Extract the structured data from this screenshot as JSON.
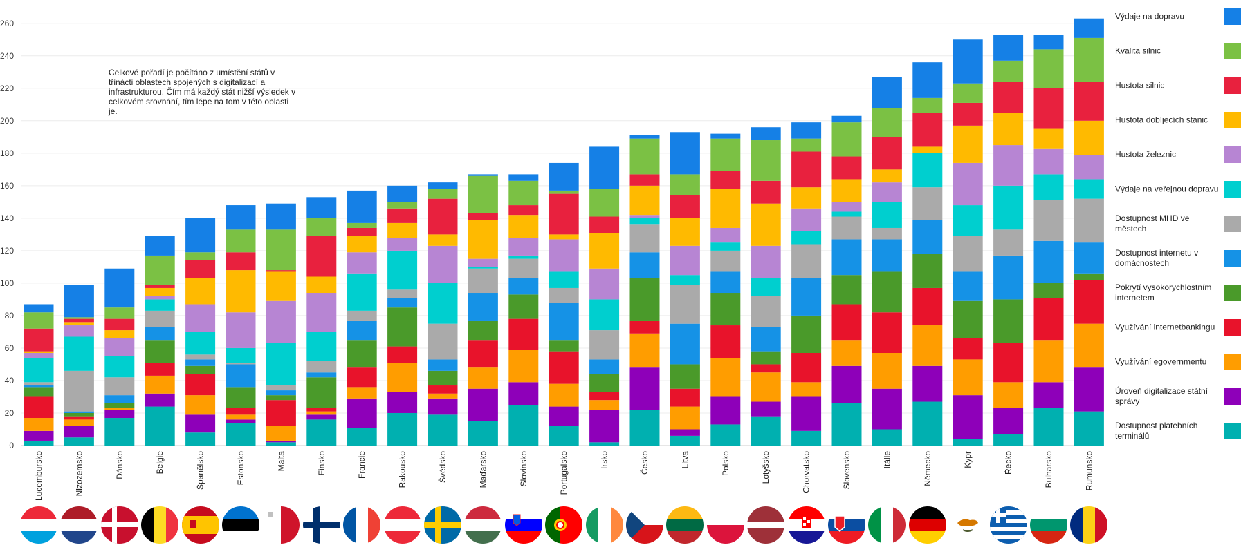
{
  "note": "Celkové pořadí je počítáno z umístění států v třinácti oblastech spojených s digitalizací a infrastrukturou. Čím má každý stát nižší výsledek v celkovém srovnání, tím lépe na tom v této oblasti je.",
  "chart_data": {
    "type": "bar",
    "stacked": true,
    "ylim": [
      0,
      265
    ],
    "yticks": [
      0,
      20,
      40,
      60,
      80,
      100,
      120,
      140,
      160,
      180,
      200,
      220,
      240,
      260
    ],
    "grid": true,
    "legend_position": "right",
    "categories": [
      "Lucembursko",
      "Nizozemsko",
      "Dánsko",
      "Belgie",
      "Španělsko",
      "Estonsko",
      "Malta",
      "Finsko",
      "Francie",
      "Rakousko",
      "Švédsko",
      "Maďarsko",
      "Slovinsko",
      "Portugalsko",
      "Irsko",
      "Česko",
      "Litva",
      "Polsko",
      "Lotyšsko",
      "Chorvatsko",
      "Slovensko",
      "Itálie",
      "Německo",
      "Kypr",
      "Řecko",
      "Bulharsko",
      "Rumunsko"
    ],
    "series": [
      {
        "name": "Dostupnost platebních terminálů",
        "color": "#00b0b0",
        "values": [
          3,
          5,
          17,
          24,
          8,
          14,
          2,
          16,
          11,
          20,
          19,
          15,
          25,
          12,
          2,
          22,
          6,
          13,
          18,
          9,
          26,
          10,
          27,
          4,
          7,
          23,
          21
        ]
      },
      {
        "name": "Úroveň digitalizace státní správy",
        "color": "#8e00b9",
        "values": [
          6,
          7,
          5,
          8,
          11,
          2,
          1,
          3,
          18,
          13,
          10,
          20,
          14,
          12,
          20,
          26,
          4,
          17,
          9,
          21,
          23,
          25,
          22,
          27,
          16,
          16,
          27
        ]
      },
      {
        "name": "Využívání egovernmentu",
        "color": "#ff9d00",
        "values": [
          8,
          4,
          1,
          11,
          12,
          3,
          9,
          2,
          7,
          18,
          3,
          13,
          20,
          14,
          6,
          21,
          14,
          24,
          18,
          9,
          16,
          22,
          25,
          22,
          16,
          26,
          27
        ]
      },
      {
        "name": "Využívání internetbankingu",
        "color": "#e8132b",
        "values": [
          13,
          2,
          0,
          8,
          13,
          4,
          16,
          2,
          12,
          10,
          5,
          17,
          19,
          20,
          5,
          8,
          11,
          20,
          5,
          18,
          22,
          25,
          23,
          13,
          24,
          26,
          27
        ]
      },
      {
        "name": "Pokrytí vysokorychlostním internetem",
        "color": "#4a9a2a",
        "values": [
          6,
          2,
          3,
          14,
          5,
          13,
          3,
          19,
          17,
          24,
          9,
          12,
          15,
          7,
          11,
          26,
          15,
          20,
          8,
          23,
          18,
          25,
          21,
          23,
          27,
          9,
          4
        ]
      },
      {
        "name": "Dostupnost internetu v domácnostech",
        "color": "#1592e6",
        "values": [
          1,
          1,
          5,
          8,
          4,
          14,
          3,
          3,
          12,
          6,
          7,
          17,
          10,
          23,
          9,
          16,
          25,
          13,
          15,
          23,
          22,
          20,
          21,
          18,
          27,
          26,
          19
        ]
      },
      {
        "name": "Dostupnost MHD ve městech",
        "color": "#aaaaaa",
        "values": [
          2,
          25,
          11,
          10,
          3,
          1,
          3,
          7,
          6,
          5,
          22,
          15,
          12,
          9,
          18,
          17,
          24,
          13,
          19,
          21,
          14,
          7,
          20,
          22,
          16,
          25,
          27
        ]
      },
      {
        "name": "Výdaje na veřejnou dopravu",
        "color": "#00cfcf",
        "values": [
          15,
          21,
          13,
          7,
          14,
          9,
          26,
          18,
          23,
          24,
          25,
          1,
          2,
          10,
          19,
          4,
          6,
          5,
          11,
          8,
          3,
          16,
          21,
          19,
          27,
          16,
          12
        ]
      },
      {
        "name": "Hustota železnic",
        "color": "#b785d3",
        "values": [
          3,
          7,
          11,
          2,
          17,
          22,
          26,
          24,
          13,
          8,
          23,
          5,
          11,
          20,
          19,
          2,
          18,
          9,
          20,
          14,
          6,
          12,
          0,
          26,
          25,
          16,
          15
        ]
      },
      {
        "name": "Hustota dobíjecích stanic",
        "color": "#ffba00",
        "values": [
          1,
          2,
          5,
          5,
          16,
          26,
          18,
          10,
          10,
          9,
          7,
          24,
          14,
          3,
          22,
          18,
          17,
          24,
          26,
          13,
          14,
          8,
          4,
          23,
          20,
          12,
          21
        ]
      },
      {
        "name": "Hustota silnic",
        "color": "#e8213e",
        "values": [
          14,
          2,
          7,
          2,
          11,
          11,
          1,
          25,
          5,
          9,
          22,
          4,
          6,
          25,
          10,
          7,
          14,
          11,
          14,
          22,
          14,
          20,
          21,
          14,
          19,
          25,
          24
        ]
      },
      {
        "name": "Kvalita silnic",
        "color": "#7bc144",
        "values": [
          10,
          1,
          7,
          18,
          5,
          14,
          25,
          11,
          3,
          4,
          6,
          23,
          15,
          2,
          17,
          22,
          13,
          20,
          25,
          8,
          21,
          18,
          9,
          12,
          13,
          24,
          27
        ]
      },
      {
        "name": "Výdaje na dopravu",
        "color": "#1580e6",
        "values": [
          5,
          20,
          24,
          12,
          21,
          15,
          16,
          13,
          20,
          10,
          4,
          1,
          4,
          17,
          26,
          2,
          26,
          3,
          8,
          10,
          4,
          19,
          22,
          27,
          16,
          9,
          12
        ]
      }
    ]
  },
  "flags": [
    {
      "country": "Lucembursko",
      "icon": "flag-luxembourg"
    },
    {
      "country": "Nizozemsko",
      "icon": "flag-netherlands"
    },
    {
      "country": "Dánsko",
      "icon": "flag-denmark"
    },
    {
      "country": "Belgie",
      "icon": "flag-belgium"
    },
    {
      "country": "Španělsko",
      "icon": "flag-spain"
    },
    {
      "country": "Estonsko",
      "icon": "flag-estonia"
    },
    {
      "country": "Malta",
      "icon": "flag-malta"
    },
    {
      "country": "Finsko",
      "icon": "flag-finland"
    },
    {
      "country": "Francie",
      "icon": "flag-france"
    },
    {
      "country": "Rakousko",
      "icon": "flag-austria"
    },
    {
      "country": "Švédsko",
      "icon": "flag-sweden"
    },
    {
      "country": "Maďarsko",
      "icon": "flag-hungary"
    },
    {
      "country": "Slovinsko",
      "icon": "flag-slovenia"
    },
    {
      "country": "Portugalsko",
      "icon": "flag-portugal"
    },
    {
      "country": "Irsko",
      "icon": "flag-ireland"
    },
    {
      "country": "Česko",
      "icon": "flag-czechia"
    },
    {
      "country": "Litva",
      "icon": "flag-lithuania"
    },
    {
      "country": "Polsko",
      "icon": "flag-poland"
    },
    {
      "country": "Lotyšsko",
      "icon": "flag-latvia"
    },
    {
      "country": "Chorvatsko",
      "icon": "flag-croatia"
    },
    {
      "country": "Slovensko",
      "icon": "flag-slovakia"
    },
    {
      "country": "Itálie",
      "icon": "flag-italy"
    },
    {
      "country": "Německo",
      "icon": "flag-germany"
    },
    {
      "country": "Kypr",
      "icon": "flag-cyprus"
    },
    {
      "country": "Řecko",
      "icon": "flag-greece"
    },
    {
      "country": "Bulharsko",
      "icon": "flag-bulgaria"
    },
    {
      "country": "Rumunsko",
      "icon": "flag-romania"
    }
  ]
}
